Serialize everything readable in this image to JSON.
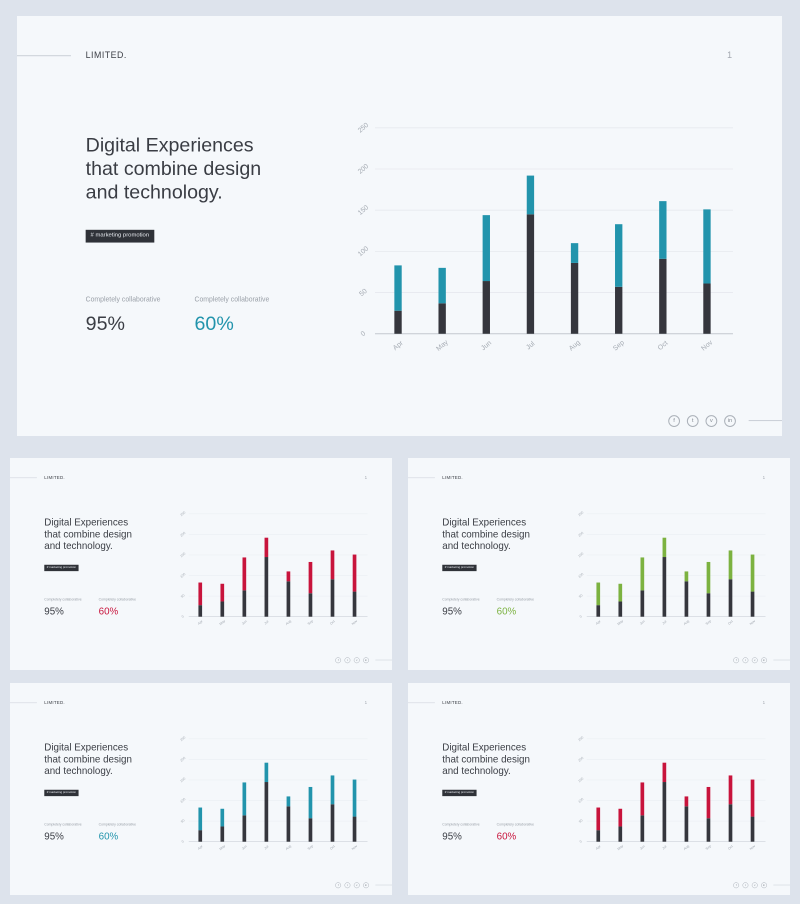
{
  "slides": [
    {
      "accent": "#2294ac"
    },
    {
      "accent": "#c8143c"
    },
    {
      "accent": "#7cb240"
    },
    {
      "accent": "#2294ac"
    },
    {
      "accent": "#c8143c"
    }
  ],
  "brand": "LIMITED.",
  "page_number": "1",
  "headline": {
    "line1": "Digital Experiences",
    "line2": "that combine design",
    "line3": "and technology."
  },
  "tag": "# marketing promotion",
  "stats": [
    {
      "label": "Completely collaborative",
      "value": "95%"
    },
    {
      "label": "Completely collaborative",
      "value": "60%"
    }
  ],
  "social_icons": [
    "facebook-icon",
    "twitter-icon",
    "vimeo-icon",
    "linkedin-icon"
  ],
  "social_glyphs": [
    "f",
    "t",
    "v",
    "in"
  ],
  "colors": {
    "dark_bar": "#35363d",
    "text": "#3a3d44",
    "muted": "#9aa0a8"
  },
  "chart_data": {
    "type": "bar",
    "stacked": true,
    "categories": [
      "Apr",
      "May",
      "Jun",
      "Jul",
      "Aug",
      "Sep",
      "Oct",
      "Nov"
    ],
    "series": [
      {
        "values": [
          28,
          37,
          64,
          145,
          86,
          57,
          91,
          61
        ]
      },
      {
        "values": [
          55,
          43,
          80,
          47,
          24,
          76,
          70,
          90
        ]
      }
    ],
    "yticks": [
      0,
      50,
      100,
      150,
      200,
      250
    ],
    "ylim": [
      0,
      250
    ],
    "grid": true
  }
}
